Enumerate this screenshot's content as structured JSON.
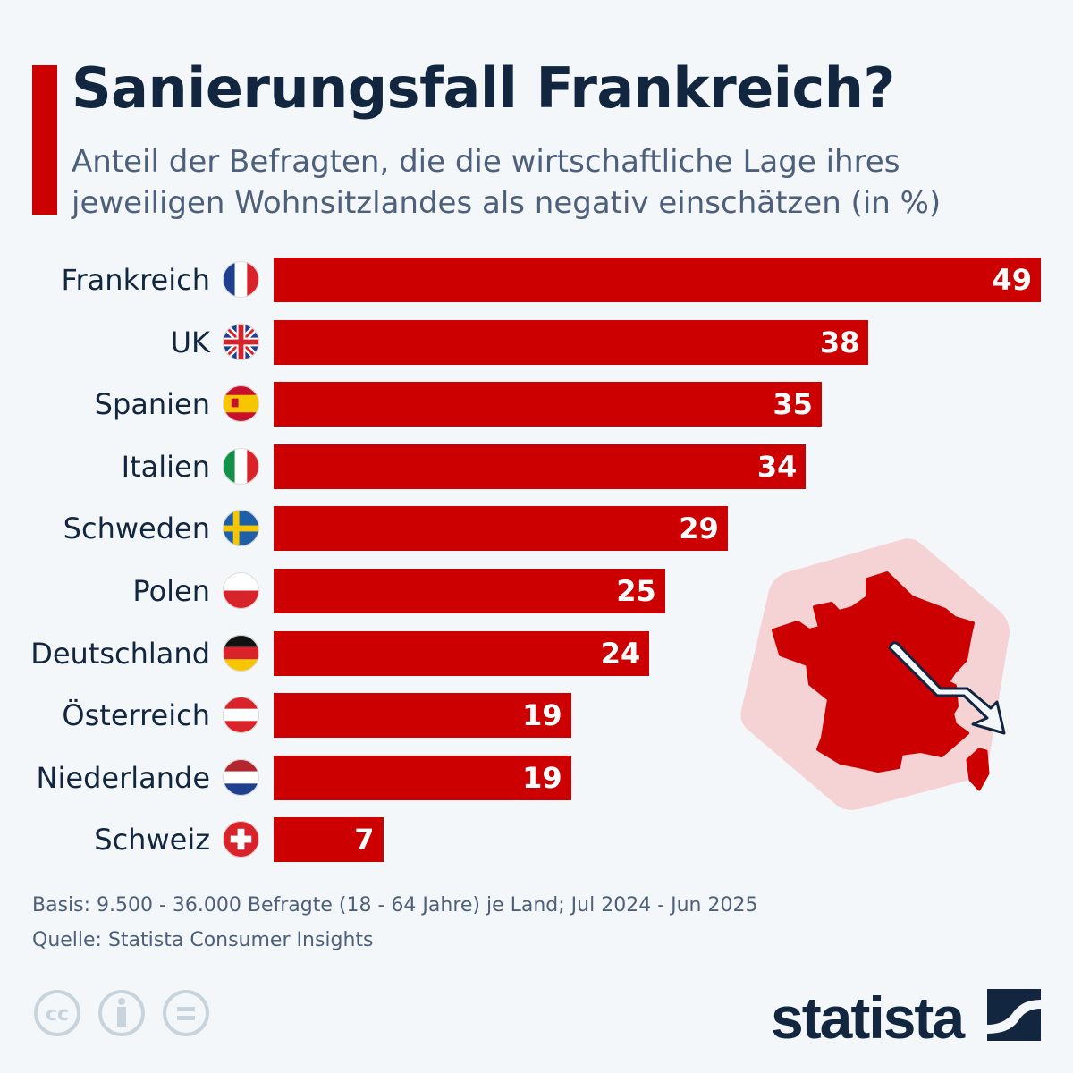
{
  "title": "Sanierungsfall Frankreich?",
  "subtitle": "Anteil der Befragten, die die wirtschaftliche Lage ihres jeweiligen Wohnsitzlandes als negativ einschätzen (in %)",
  "chart_data": {
    "type": "bar",
    "orientation": "horizontal",
    "title": "Sanierungsfall Frankreich?",
    "subtitle": "Anteil der Befragten, die die wirtschaftliche Lage ihres jeweiligen Wohnsitzlandes als negativ einschätzen (in %)",
    "categories": [
      "Frankreich",
      "UK",
      "Spanien",
      "Italien",
      "Schweden",
      "Polen",
      "Deutschland",
      "Österreich",
      "Niederlande",
      "Schweiz"
    ],
    "values": [
      49,
      38,
      35,
      34,
      29,
      25,
      24,
      19,
      19,
      7
    ],
    "flags": [
      "france-flag-icon",
      "uk-flag-icon",
      "spain-flag-icon",
      "italy-flag-icon",
      "sweden-flag-icon",
      "poland-flag-icon",
      "germany-flag-icon",
      "austria-flag-icon",
      "netherlands-flag-icon",
      "switzerland-flag-icon"
    ],
    "xlim": [
      0,
      49
    ],
    "grid": false,
    "bar_color": "#cc0000"
  },
  "footer": {
    "basis": "Basis: 9.500 - 36.000 Befragte (18 - 64 Jahre) je Land; Jul 2024 - Jun 2025",
    "source": "Quelle: Statista Consumer Insights"
  },
  "logo": "statista",
  "colors": {
    "accent": "#cc0000",
    "title": "#12263f",
    "text": "#4d5f7a",
    "background": "#f4f7fa",
    "map_bg": "#f5d3d5"
  }
}
